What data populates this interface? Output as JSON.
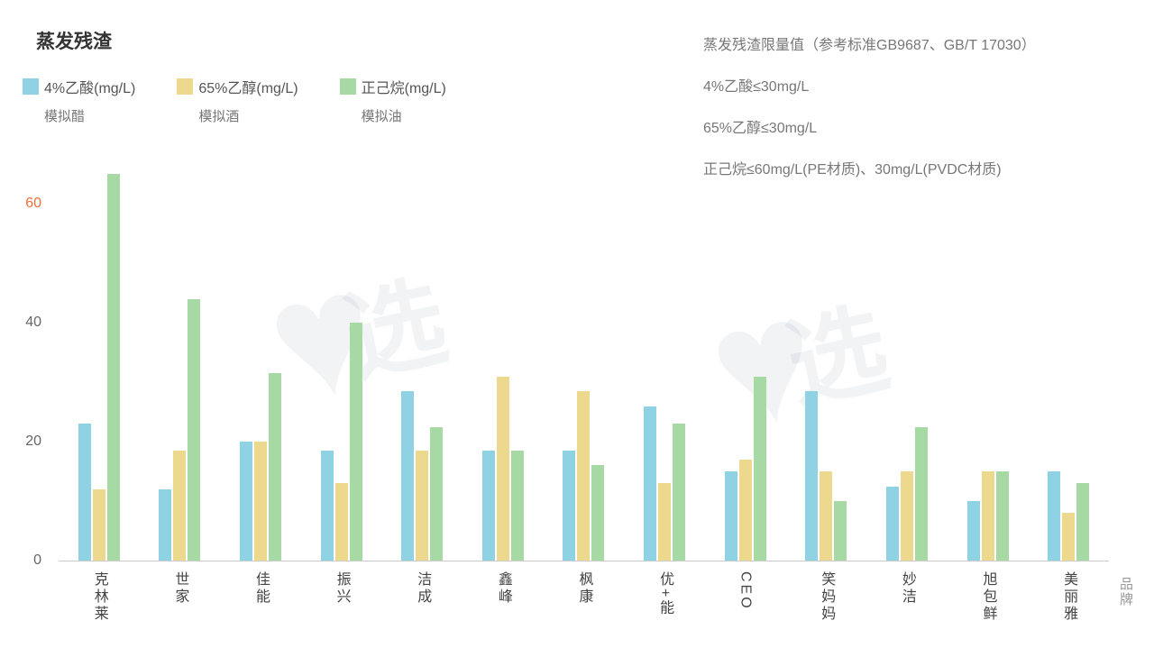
{
  "chart_data": {
    "type": "bar",
    "title": "蒸发残渣",
    "categories": [
      "克林莱",
      "世家",
      "佳能",
      "振兴",
      "洁成",
      "鑫峰",
      "枫康",
      "优+能",
      "CEO",
      "笑妈妈",
      "妙洁",
      "旭包鲜",
      "美丽雅"
    ],
    "series": [
      {
        "name": "4%乙酸(mg/L)",
        "color": "#8fd2e3",
        "values": [
          23,
          12,
          20,
          18.5,
          28.5,
          18.5,
          18.5,
          26,
          15,
          28.5,
          12.5,
          10,
          15
        ]
      },
      {
        "name": "65%乙醇(mg/L)",
        "color": "#edd98d",
        "values": [
          12,
          18.5,
          20,
          13,
          18.5,
          31,
          28.5,
          13,
          17,
          15,
          15,
          15,
          8
        ]
      },
      {
        "name": "正己烷(mg/L)",
        "color": "#a6d9a4",
        "values": [
          65,
          44,
          31.5,
          40,
          22.5,
          18.5,
          16,
          23,
          31,
          10,
          22.5,
          15,
          13
        ]
      }
    ],
    "yticks": [
      0,
      20,
      40,
      60
    ],
    "ylim": [
      0,
      66.7
    ],
    "highlight_tick": 60,
    "highlight_color": "#e8703a",
    "xlabel": "品牌",
    "grid": false,
    "legend_position": "top-left"
  },
  "legend": [
    {
      "label": "4%乙酸(mg/L)",
      "sub": "模拟醋",
      "color": "#8fd2e3"
    },
    {
      "label": "65%乙醇(mg/L)",
      "sub": "模拟酒",
      "color": "#edd98d"
    },
    {
      "label": "正己烷(mg/L)",
      "sub": "模拟油",
      "color": "#a6d9a4"
    }
  ],
  "limits": {
    "title": "蒸发残渣限量值（参考标准GB9687、GB/T 17030）",
    "lines": [
      "4%乙酸≤30mg/L",
      "65%乙醇≤30mg/L",
      "正己烷≤60mg/L(PE材质)、30mg/L(PVDC材质)"
    ]
  },
  "xlabel": "品牌",
  "watermark": {
    "icon": "heart-icon",
    "text": "选"
  }
}
